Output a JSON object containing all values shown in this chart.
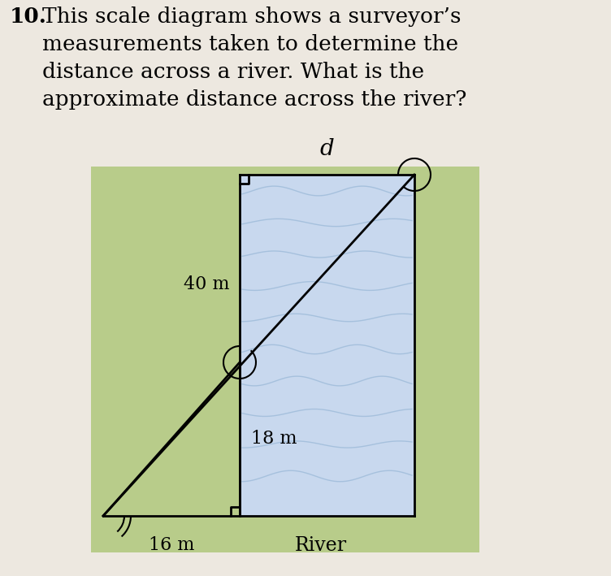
{
  "title_number": "10.",
  "title_text": "This scale diagram shows a surveyor’s\nmeasurements taken to determine the\ndistance across a river. What is the\napproximate distance across the river?",
  "label_d": "d",
  "label_40m": "40 m",
  "label_18m": "18 m",
  "label_16m": "16 m",
  "label_river": "River",
  "bg_green": "#b8cc8a",
  "bg_river": "#c8d8ee",
  "line_color": "#000000",
  "text_color": "#000000",
  "fig_bg": "#ede8e0",
  "title_fontsize": 19,
  "label_fontsize": 16,
  "river_label_fontsize": 17
}
